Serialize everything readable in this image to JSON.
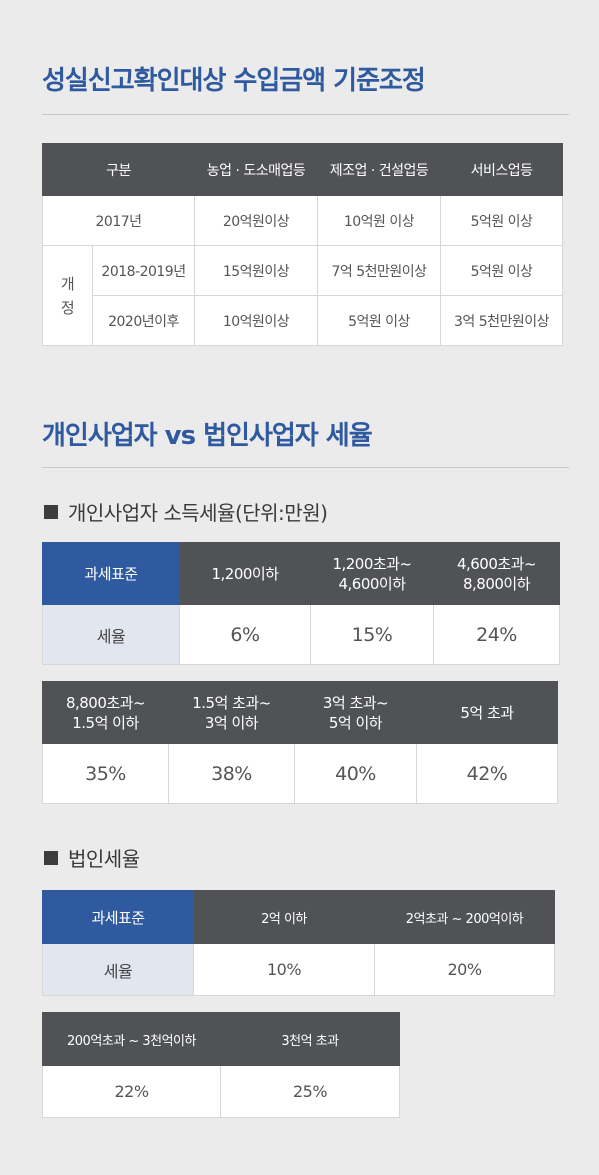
{
  "sec1": {
    "title": "성실신고확인대상 수입금액 기준조정",
    "headers": [
      "구분",
      "농업 · 도소매업등",
      "제조업 · 건설업등",
      "서비스업등"
    ],
    "row2017": {
      "label": "2017년",
      "values": [
        "20억원이상",
        "10억원 이상",
        "5억원 이상"
      ]
    },
    "revision_label": "개정",
    "rows": [
      {
        "label": "2018-2019년",
        "values": [
          "15억원이상",
          "7억 5천만원이상",
          "5억원 이상"
        ]
      },
      {
        "label": "2020년이후",
        "values": [
          "10억원이상",
          "5억원 이상",
          "3억 5천만원이상"
        ]
      }
    ]
  },
  "sec2": {
    "title": "개인사업자 vs 법인사업자 세율",
    "personal": {
      "heading": "개인사업자 소득세율(단위:만원)",
      "standard_label": "과세표준",
      "rate_label": "세율",
      "brackets_a": [
        {
          "l1": "1,200이하",
          "l2": ""
        },
        {
          "l1": "1,200초과~",
          "l2": "4,600이하"
        },
        {
          "l1": "4,600초과~",
          "l2": "8,800이하"
        }
      ],
      "rates_a": [
        "6%",
        "15%",
        "24%"
      ],
      "brackets_b": [
        {
          "l1": "8,800초과~",
          "l2": "1.5억 이하"
        },
        {
          "l1": "1.5억 초과~",
          "l2": "3억 이하"
        },
        {
          "l1": "3억 초과~",
          "l2": "5억 이하"
        },
        {
          "l1": "5억 초과",
          "l2": ""
        }
      ],
      "rates_b": [
        "35%",
        "38%",
        "40%",
        "42%"
      ]
    },
    "corporate": {
      "heading": "법인세율",
      "standard_label": "과세표준",
      "rate_label": "세율",
      "brackets_a": [
        "2억 이하",
        "2억초과 ~ 200억이하"
      ],
      "rates_a": [
        "10%",
        "20%"
      ],
      "brackets_b": [
        "200억초과 ~ 3천억이하",
        "3천억 초과"
      ],
      "rates_b": [
        "22%",
        "25%"
      ]
    }
  }
}
